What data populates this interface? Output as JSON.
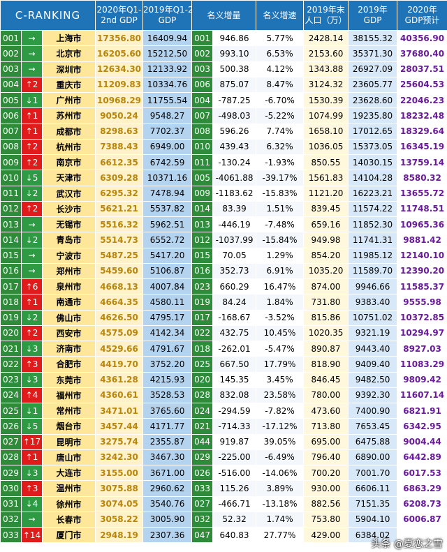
{
  "headers": {
    "rank": "C-RANKING",
    "gdp_2020_l1": "2020年Q1-",
    "gdp_2020_l2": "2nd GDP",
    "gdp_2019q_l1": "2019年Q1-2nd",
    "gdp_2019q_l2": "GDP",
    "nominal_inc": "名义增量",
    "nominal_rate": "名义增速",
    "pop_l1": "2019年末",
    "pop_l2": "人口（万）",
    "gdp_2019_l1": "2019年",
    "gdp_2019_l2": "GDP",
    "pred_l1": "2020年",
    "pred_l2": "GDP预计"
  },
  "rows": [
    {
      "rank": "001",
      "chg": "→",
      "dir": "same",
      "city": "上海市",
      "gdp20": "17356.80",
      "gdp19q": "16409.94",
      "rank19": "001",
      "inc": "946.86",
      "rate": "5.77%",
      "pop": "2428.14",
      "gdp19": "38155.32",
      "pred": "40356.90"
    },
    {
      "rank": "002",
      "chg": "→",
      "dir": "same",
      "city": "北京市",
      "gdp20": "16205.60",
      "gdp19q": "15212.50",
      "rank19": "002",
      "inc": "993.10",
      "rate": "6.53%",
      "pop": "2153.60",
      "gdp19": "35371.30",
      "pred": "37680.40"
    },
    {
      "rank": "003",
      "chg": "→",
      "dir": "same",
      "city": "深圳市",
      "gdp20": "12634.30",
      "gdp19q": "12133.92",
      "rank19": "003",
      "inc": "500.38",
      "rate": "4.12%",
      "pop": "1343.88",
      "gdp19": "26927.09",
      "pred": "28037.51"
    },
    {
      "rank": "004",
      "chg": "↑2",
      "dir": "up",
      "city": "重庆市",
      "gdp20": "11209.83",
      "gdp19q": "10334.76",
      "rank19": "006",
      "inc": "875.07",
      "rate": "8.47%",
      "pop": "3124.32",
      "gdp19": "23605.77",
      "pred": "25604.53"
    },
    {
      "rank": "005",
      "chg": "↓1",
      "dir": "down",
      "city": "广州市",
      "gdp20": "10968.29",
      "gdp19q": "11755.54",
      "rank19": "004",
      "inc": "-787.25",
      "rate": "-6.70%",
      "pop": "1530.39",
      "gdp19": "23628.60",
      "pred": "22046.23"
    },
    {
      "rank": "006",
      "chg": "↑1",
      "dir": "up",
      "city": "苏州市",
      "gdp20": "9050.24",
      "gdp19q": "9548.27",
      "rank19": "007",
      "inc": "-498.03",
      "rate": "-5.22%",
      "pop": "1074.99",
      "gdp19": "19235.80",
      "pred": "18232.48"
    },
    {
      "rank": "007",
      "chg": "↑1",
      "dir": "up",
      "city": "成都市",
      "gdp20": "8298.63",
      "gdp19q": "7702.37",
      "rank19": "008",
      "inc": "596.26",
      "rate": "7.74%",
      "pop": "1658.10",
      "gdp19": "17012.65",
      "pred": "18329.64"
    },
    {
      "rank": "008",
      "chg": "↑2",
      "dir": "up",
      "city": "杭州市",
      "gdp20": "7388.43",
      "gdp19q": "6949.00",
      "rank19": "010",
      "inc": "439.43",
      "rate": "6.32%",
      "pop": "1036.05",
      "gdp19": "15373.05",
      "pred": "16345.19"
    },
    {
      "rank": "009",
      "chg": "↑2",
      "dir": "up",
      "city": "南京市",
      "gdp20": "6612.35",
      "gdp19q": "6742.59",
      "rank19": "011",
      "inc": "-130.24",
      "rate": "-1.93%",
      "pop": "850.55",
      "gdp19": "14030.15",
      "pred": "13759.14"
    },
    {
      "rank": "010",
      "chg": "↓5",
      "dir": "down",
      "city": "天津市",
      "gdp20": "6309.28",
      "gdp19q": "10371.16",
      "rank19": "005",
      "inc": "-4061.88",
      "rate": "-39.17%",
      "pop": "1561.83",
      "gdp19": "14104.28",
      "pred": "8580.32"
    },
    {
      "rank": "011",
      "chg": "↓2",
      "dir": "down",
      "city": "武汉市",
      "gdp20": "6295.32",
      "gdp19q": "7478.94",
      "rank19": "009",
      "inc": "-1183.62",
      "rate": "-15.83%",
      "pop": "1121.20",
      "gdp19": "16223.21",
      "pred": "13655.72"
    },
    {
      "rank": "012",
      "chg": "↑2",
      "dir": "up",
      "city": "长沙市",
      "gdp20": "5621.21",
      "gdp19q": "5537.82",
      "rank19": "014",
      "inc": "83.39",
      "rate": "1.51%",
      "pop": "839.45",
      "gdp19": "11574.22",
      "pred": "11748.51"
    },
    {
      "rank": "013",
      "chg": "→",
      "dir": "same",
      "city": "无锡市",
      "gdp20": "5516.32",
      "gdp19q": "5962.51",
      "rank19": "013",
      "inc": "-446.19",
      "rate": "-7.48%",
      "pop": "659.16",
      "gdp19": "11852.30",
      "pred": "10965.36"
    },
    {
      "rank": "014",
      "chg": "↓2",
      "dir": "down",
      "city": "青岛市",
      "gdp20": "5514.73",
      "gdp19q": "6552.72",
      "rank19": "012",
      "inc": "-1037.99",
      "rate": "-15.84%",
      "pop": "949.98",
      "gdp19": "11741.31",
      "pred": "9881.42"
    },
    {
      "rank": "015",
      "chg": "→",
      "dir": "same",
      "city": "宁波市",
      "gdp20": "5487.25",
      "gdp19q": "5417.20",
      "rank19": "015",
      "inc": "70.05",
      "rate": "1.29%",
      "pop": "854.20",
      "gdp19": "11985.12",
      "pred": "12140.10"
    },
    {
      "rank": "016",
      "chg": "→",
      "dir": "same",
      "city": "郑州市",
      "gdp20": "5459.60",
      "gdp19q": "5106.87",
      "rank19": "016",
      "inc": "352.73",
      "rate": "6.91%",
      "pop": "1035.20",
      "gdp19": "11589.70",
      "pred": "12390.20"
    },
    {
      "rank": "017",
      "chg": "↑6",
      "dir": "up",
      "city": "泉州市",
      "gdp20": "4668.13",
      "gdp19q": "4007.84",
      "rank19": "023",
      "inc": "660.29",
      "rate": "16.47%",
      "pop": "874.00",
      "gdp19": "9946.66",
      "pred": "11585.37"
    },
    {
      "rank": "018",
      "chg": "↑1",
      "dir": "up",
      "city": "南通市",
      "gdp20": "4664.35",
      "gdp19q": "4580.11",
      "rank19": "019",
      "inc": "84.24",
      "rate": "1.84%",
      "pop": "731.80",
      "gdp19": "9383.40",
      "pred": "9555.98"
    },
    {
      "rank": "019",
      "chg": "↓2",
      "dir": "down",
      "city": "佛山市",
      "gdp20": "4626.50",
      "gdp19q": "4795.17",
      "rank19": "017",
      "inc": "-168.67",
      "rate": "-3.52%",
      "pop": "815.86",
      "gdp19": "10751.02",
      "pred": "10372.85"
    },
    {
      "rank": "020",
      "chg": "↑2",
      "dir": "up",
      "city": "西安市",
      "gdp20": "4575.09",
      "gdp19q": "4142.34",
      "rank19": "022",
      "inc": "432.75",
      "rate": "10.45%",
      "pop": "1020.35",
      "gdp19": "9321.19",
      "pred": "10294.97"
    },
    {
      "rank": "021",
      "chg": "↓3",
      "dir": "down",
      "city": "济南市",
      "gdp20": "4529.66",
      "gdp19q": "4791.67",
      "rank19": "018",
      "inc": "-262.01",
      "rate": "-5.47%",
      "pop": "890.87",
      "gdp19": "9443.40",
      "pred": "8927.03"
    },
    {
      "rank": "022",
      "chg": "↑3",
      "dir": "up",
      "city": "合肥市",
      "gdp20": "4419.70",
      "gdp19q": "3752.20",
      "rank19": "025",
      "inc": "667.50",
      "rate": "17.79%",
      "pop": "818.90",
      "gdp19": "9409.40",
      "pred": "11083.29"
    },
    {
      "rank": "023",
      "chg": "↓3",
      "dir": "down",
      "city": "东莞市",
      "gdp20": "4361.28",
      "gdp19q": "4215.93",
      "rank19": "020",
      "inc": "145.35",
      "rate": "3.45%",
      "pop": "846.45",
      "gdp19": "9482.50",
      "pred": "9809.42"
    },
    {
      "rank": "024",
      "chg": "↑4",
      "dir": "up",
      "city": "福州市",
      "gdp20": "4360.61",
      "gdp19q": "3528.53",
      "rank19": "028",
      "inc": "832.08",
      "rate": "23.58%",
      "pop": "780.00",
      "gdp19": "9392.30",
      "pred": "11607.14"
    },
    {
      "rank": "025",
      "chg": "↓1",
      "dir": "down",
      "city": "常州市",
      "gdp20": "3471.01",
      "gdp19q": "3765.60",
      "rank19": "024",
      "inc": "-294.59",
      "rate": "-7.82%",
      "pop": "473.60",
      "gdp19": "7400.90",
      "pred": "6821.91"
    },
    {
      "rank": "026",
      "chg": "↓5",
      "dir": "down",
      "city": "烟台市",
      "gdp20": "3457.44",
      "gdp19q": "4171.77",
      "rank19": "021",
      "inc": "-714.33",
      "rate": "-17.12%",
      "pop": "713.80",
      "gdp19": "7653.45",
      "pred": "6342.95"
    },
    {
      "rank": "027",
      "chg": "↑17",
      "dir": "up",
      "city": "昆明市",
      "gdp20": "3275.74",
      "gdp19q": "2355.87",
      "rank19": "044",
      "inc": "919.87",
      "rate": "39.05%",
      "pop": "695.00",
      "gdp19": "6475.88",
      "pred": "9004.44"
    },
    {
      "rank": "028",
      "chg": "↑1",
      "dir": "up",
      "city": "唐山市",
      "gdp20": "3242.30",
      "gdp19q": "3467.30",
      "rank19": "029",
      "inc": "-225.00",
      "rate": "-6.49%",
      "pop": "796.40",
      "gdp19": "6890.00",
      "pred": "6442.89"
    },
    {
      "rank": "029",
      "chg": "↓3",
      "dir": "down",
      "city": "大连市",
      "gdp20": "3155.00",
      "gdp19q": "3671.00",
      "rank19": "026",
      "inc": "-516.00",
      "rate": "-14.06%",
      "pop": "700.20",
      "gdp19": "7001.70",
      "pred": "6017.53"
    },
    {
      "rank": "030",
      "chg": "↑3",
      "dir": "up",
      "city": "温州市",
      "gdp20": "3075.88",
      "gdp19q": "2960.62",
      "rank19": "033",
      "inc": "115.26",
      "rate": "3.89%",
      "pop": "930.00",
      "gdp19": "6606.11",
      "pred": "6863.29"
    },
    {
      "rank": "031",
      "chg": "↓4",
      "dir": "down",
      "city": "徐州市",
      "gdp20": "3074.05",
      "gdp19q": "3540.76",
      "rank19": "027",
      "inc": "-466.71",
      "rate": "-13.18%",
      "pop": "882.56",
      "gdp19": "7151.35",
      "pred": "6208.73"
    },
    {
      "rank": "032",
      "chg": "→",
      "dir": "same",
      "city": "长春市",
      "gdp20": "3058.22",
      "gdp19q": "3005.90",
      "rank19": "032",
      "inc": "52.32",
      "rate": "1.74%",
      "pop": "753.80",
      "gdp19": "5904.10",
      "pred": "6006.87"
    },
    {
      "rank": "033",
      "chg": "↑14",
      "dir": "up",
      "city": "厦门市",
      "gdp20": "2948.19",
      "gdp19q": "2307.36",
      "rank19": "047",
      "inc": "640.83",
      "rate": "27.77%",
      "pop": "429.00",
      "gdp19": "6384.02",
      "pred": ""
    }
  ],
  "watermark": "头条 @夏恋之雪"
}
